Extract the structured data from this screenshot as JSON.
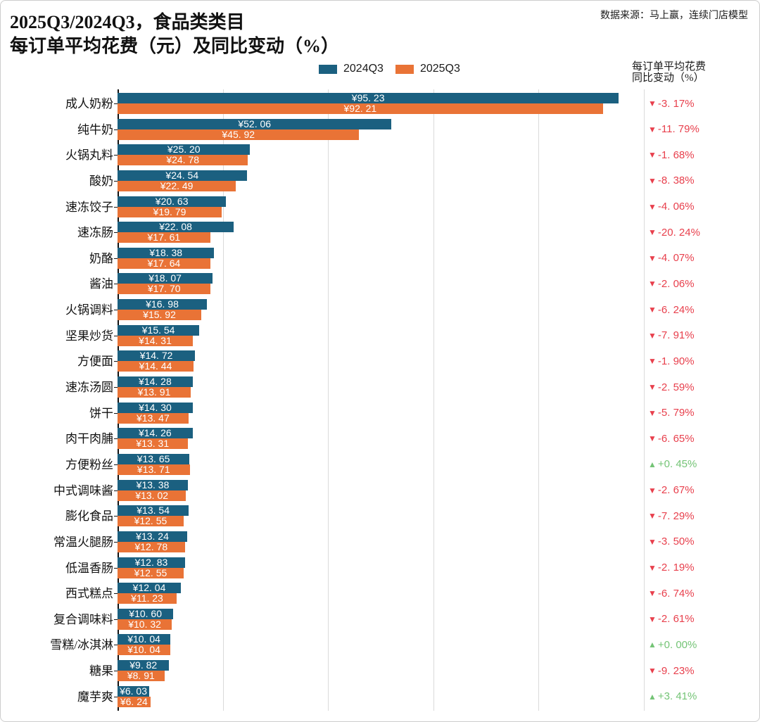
{
  "title": {
    "line1": "2025Q3/2024Q3，食品类类目",
    "line2": "每订单平均花费（元）及同比变动（%）"
  },
  "source": "数据来源：马上赢，连续门店模型",
  "legend": {
    "items": [
      {
        "label": "2024Q3",
        "color": "#1B6080"
      },
      {
        "label": "2025Q3",
        "color": "#E97336"
      }
    ]
  },
  "yoy_header": {
    "line1": "每订单平均花费",
    "line2": "同比变动（%）"
  },
  "colors": {
    "bar_2024": "#1B6080",
    "bar_2025": "#E97336",
    "yoy_down": "#E8404D",
    "yoy_up": "#74C476",
    "gridline": "#dadada",
    "axis": "#111111",
    "bar_value_text": "#ffffff"
  },
  "icons": {
    "down": "▼",
    "up": "▲"
  },
  "chart_data": {
    "type": "bar",
    "orientation": "horizontal",
    "title": "2025Q3/2024Q3，食品类类目 每订单平均花费（元）及同比变动（%）",
    "value_prefix": "¥",
    "xlim": [
      0,
      100
    ],
    "gridlines_x": [
      20,
      40,
      60,
      80,
      100
    ],
    "grid": true,
    "legend_position": "top-center",
    "categories": [
      "成人奶粉",
      "纯牛奶",
      "火锅丸料",
      "酸奶",
      "速冻饺子",
      "速冻肠",
      "奶酪",
      "酱油",
      "火锅调料",
      "坚果炒货",
      "方便面",
      "速冻汤圆",
      "饼干",
      "肉干肉脯",
      "方便粉丝",
      "中式调味酱",
      "膨化食品",
      "常温火腿肠",
      "低温香肠",
      "西式糕点",
      "复合调味料",
      "雪糕/冰淇淋",
      "糖果",
      "魔芋爽"
    ],
    "series": [
      {
        "name": "2024Q3",
        "values": [
          95.23,
          52.06,
          25.2,
          24.54,
          20.63,
          22.08,
          18.38,
          18.07,
          16.98,
          15.54,
          14.72,
          14.28,
          14.3,
          14.26,
          13.65,
          13.38,
          13.54,
          13.24,
          12.83,
          12.04,
          10.6,
          10.04,
          9.82,
          6.03
        ]
      },
      {
        "name": "2025Q3",
        "values": [
          92.21,
          45.92,
          24.78,
          22.49,
          19.79,
          17.61,
          17.64,
          17.7,
          15.92,
          14.31,
          14.44,
          13.91,
          13.47,
          13.31,
          13.71,
          13.02,
          12.55,
          12.78,
          12.55,
          11.23,
          10.32,
          10.04,
          8.91,
          6.24
        ]
      }
    ],
    "yoy_pct": [
      -3.17,
      -11.79,
      -1.68,
      -8.38,
      -4.06,
      -20.24,
      -4.07,
      -2.06,
      -6.24,
      -7.91,
      -1.9,
      -2.59,
      -5.79,
      -6.65,
      0.45,
      -2.67,
      -7.29,
      -3.5,
      -2.19,
      -6.74,
      -2.61,
      0.0,
      -9.23,
      3.41
    ]
  }
}
